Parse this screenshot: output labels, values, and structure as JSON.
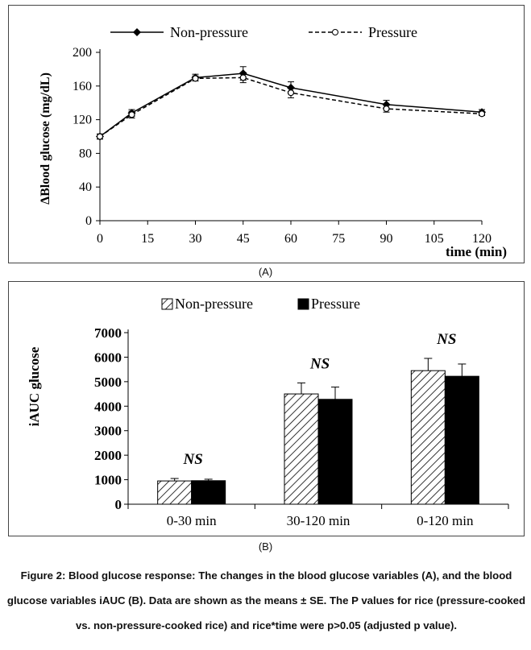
{
  "chart_data": [
    {
      "type": "line",
      "panel_label": "(A)",
      "ylabel": "ΔBlood glucose  (mg/dL)",
      "xlabel": "time (min)",
      "x": [
        0,
        10,
        30,
        45,
        60,
        90,
        120
      ],
      "xticks": [
        "0",
        "15",
        "30",
        "45",
        "60",
        "75",
        "90",
        "105",
        "120"
      ],
      "xlim": [
        0,
        120
      ],
      "yticks": [
        "0",
        "40",
        "80",
        "120",
        "160",
        "200"
      ],
      "ylim": [
        0,
        200
      ],
      "grid": false,
      "legend_position": "top",
      "series": [
        {
          "name": "Non-pressure",
          "values": [
            100,
            128,
            170,
            175,
            158,
            138,
            129
          ],
          "errors": [
            3,
            4,
            4,
            8,
            7,
            5,
            3
          ],
          "style": "solid",
          "marker": "filled-diamond",
          "color": "#000000"
        },
        {
          "name": "Pressure",
          "values": [
            100,
            126,
            169,
            170,
            152,
            133,
            127
          ],
          "errors": [
            3,
            4,
            3,
            6,
            6,
            4,
            2
          ],
          "style": "dashed",
          "marker": "open-circle",
          "color": "#000000"
        }
      ]
    },
    {
      "type": "bar",
      "panel_label": "(B)",
      "ylabel": "iAUC glucose",
      "categories": [
        "0-30 min",
        "30-120 min",
        "0-120 min"
      ],
      "yticks": [
        "0",
        "1000",
        "2000",
        "3000",
        "4000",
        "5000",
        "6000",
        "7000"
      ],
      "ylim": [
        0,
        7000
      ],
      "grid": false,
      "legend_position": "top",
      "annotations": [
        "NS",
        "NS",
        "NS"
      ],
      "series": [
        {
          "name": "Non-pressure",
          "values": [
            950,
            4500,
            5450
          ],
          "errors": [
            100,
            450,
            500
          ],
          "fill": "hatched"
        },
        {
          "name": "Pressure",
          "values": [
            960,
            4280,
            5220
          ],
          "errors": [
            60,
            500,
            500
          ],
          "fill": "#000000"
        }
      ]
    }
  ],
  "caption": "Figure 2: Blood glucose response: The changes in the blood glucose variables (A), and the blood glucose variables iAUC (B). Data are shown as the means ± SE. The P values for rice (pressure-cooked vs. non-pressure-cooked rice) and rice*time were p>0.05 (adjusted p value)."
}
